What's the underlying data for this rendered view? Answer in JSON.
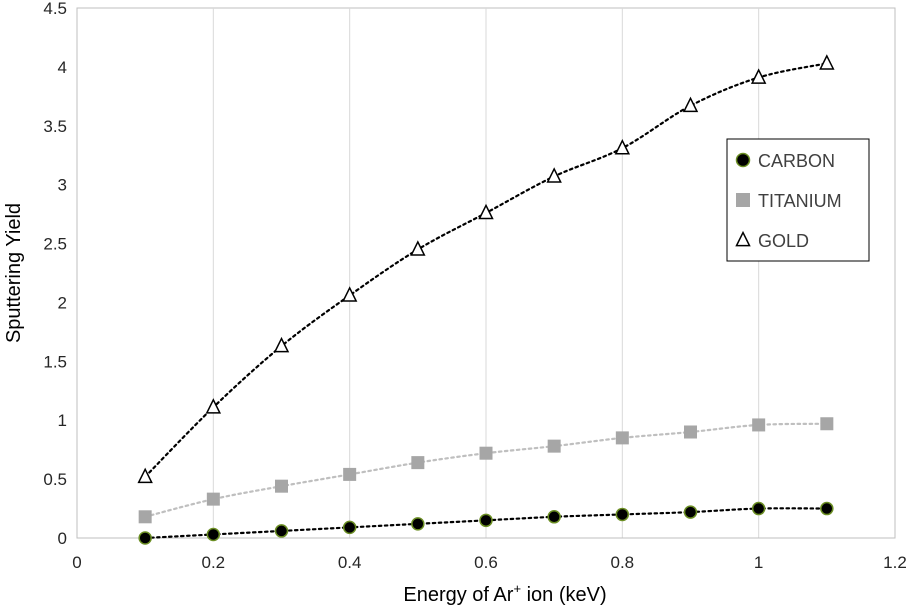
{
  "chart_data": {
    "type": "scatter",
    "title": "",
    "xlabel_main": "Energy of Ar",
    "xlabel_sup": "+",
    "xlabel_tail": " ion (keV)",
    "ylabel": "Sputtering Yield",
    "xlim": [
      0,
      1.2
    ],
    "ylim": [
      0,
      4.5
    ],
    "x_ticks": [
      "0",
      "0.2",
      "0.4",
      "0.6",
      "0.8",
      "1",
      "1.2"
    ],
    "y_ticks": [
      "0",
      "0.5",
      "1",
      "1.5",
      "2",
      "2.5",
      "3",
      "3.5",
      "4",
      "4.5"
    ],
    "grid": "vertical",
    "legend_position": "right",
    "x": [
      0.1,
      0.2,
      0.3,
      0.4,
      0.5,
      0.6,
      0.7,
      0.8,
      0.9,
      1.0,
      1.1
    ],
    "series": [
      {
        "name": "CARBON",
        "marker": "circle",
        "marker_fill": "#000000",
        "marker_stroke": "#6b8e23",
        "trend_color": "#000000",
        "values": [
          0.0,
          0.03,
          0.06,
          0.09,
          0.12,
          0.15,
          0.18,
          0.2,
          0.22,
          0.25,
          0.25
        ]
      },
      {
        "name": "TITANIUM",
        "marker": "square",
        "marker_fill": "#a6a6a6",
        "marker_stroke": "#a6a6a6",
        "trend_color": "#bfbfbf",
        "values": [
          0.18,
          0.33,
          0.44,
          0.54,
          0.64,
          0.72,
          0.78,
          0.85,
          0.9,
          0.96,
          0.97
        ]
      },
      {
        "name": "GOLD",
        "marker": "triangle",
        "marker_fill": "#ffffff",
        "marker_stroke": "#000000",
        "trend_color": "#000000",
        "values": [
          0.52,
          1.11,
          1.63,
          2.06,
          2.45,
          2.76,
          3.07,
          3.31,
          3.67,
          3.91,
          4.03
        ]
      }
    ]
  }
}
